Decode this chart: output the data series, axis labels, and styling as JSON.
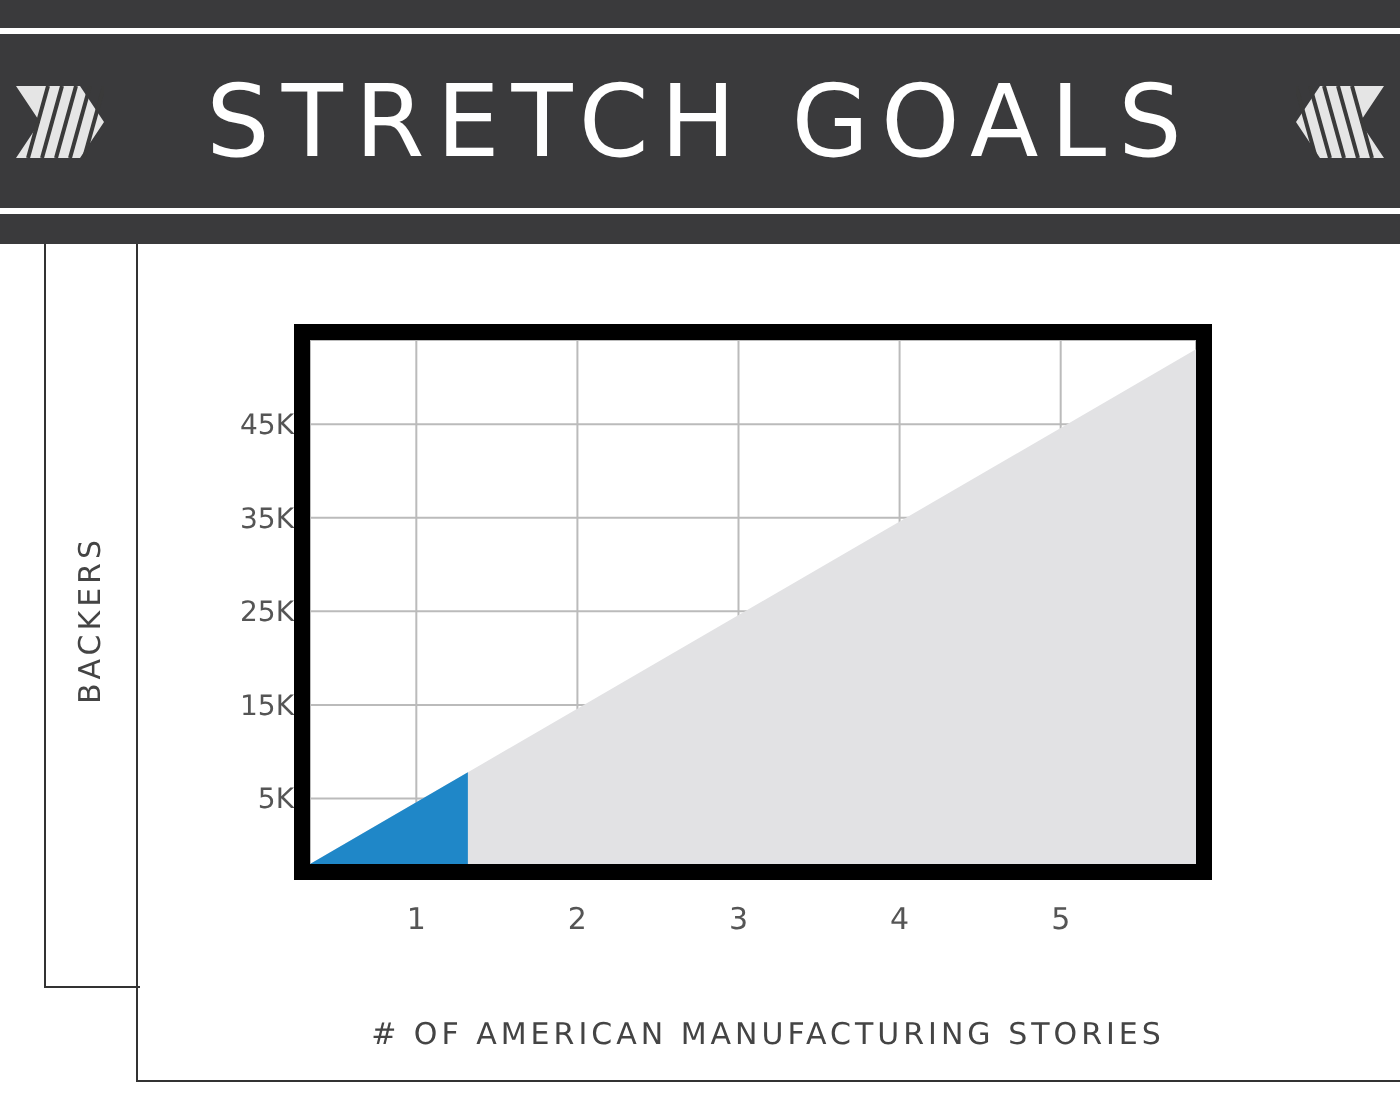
{
  "chart_data": {
    "type": "area",
    "title": "STRETCH GOALS",
    "xlabel": "# OF AMERICAN MANUFACTURING STORIES",
    "ylabel": "BACKERS",
    "xlim": [
      0.34,
      5.84
    ],
    "xticks": [
      1,
      2,
      3,
      4,
      5
    ],
    "ylim": [
      -2000,
      54000
    ],
    "yticks": [
      {
        "value": 5000,
        "label": "5K"
      },
      {
        "value": 15000,
        "label": "15K"
      },
      {
        "value": 25000,
        "label": "25K"
      },
      {
        "value": 35000,
        "label": "35K"
      },
      {
        "value": 45000,
        "label": "45K"
      }
    ],
    "grid": true,
    "series": [
      {
        "color": "#e2e2e4",
        "x": [
          0.34,
          5.84
        ],
        "values": [
          -2000,
          53000
        ]
      },
      {
        "color": "#1f87c8",
        "x": [
          0.34,
          1.32
        ],
        "values": [
          -2000,
          7800
        ]
      }
    ]
  }
}
